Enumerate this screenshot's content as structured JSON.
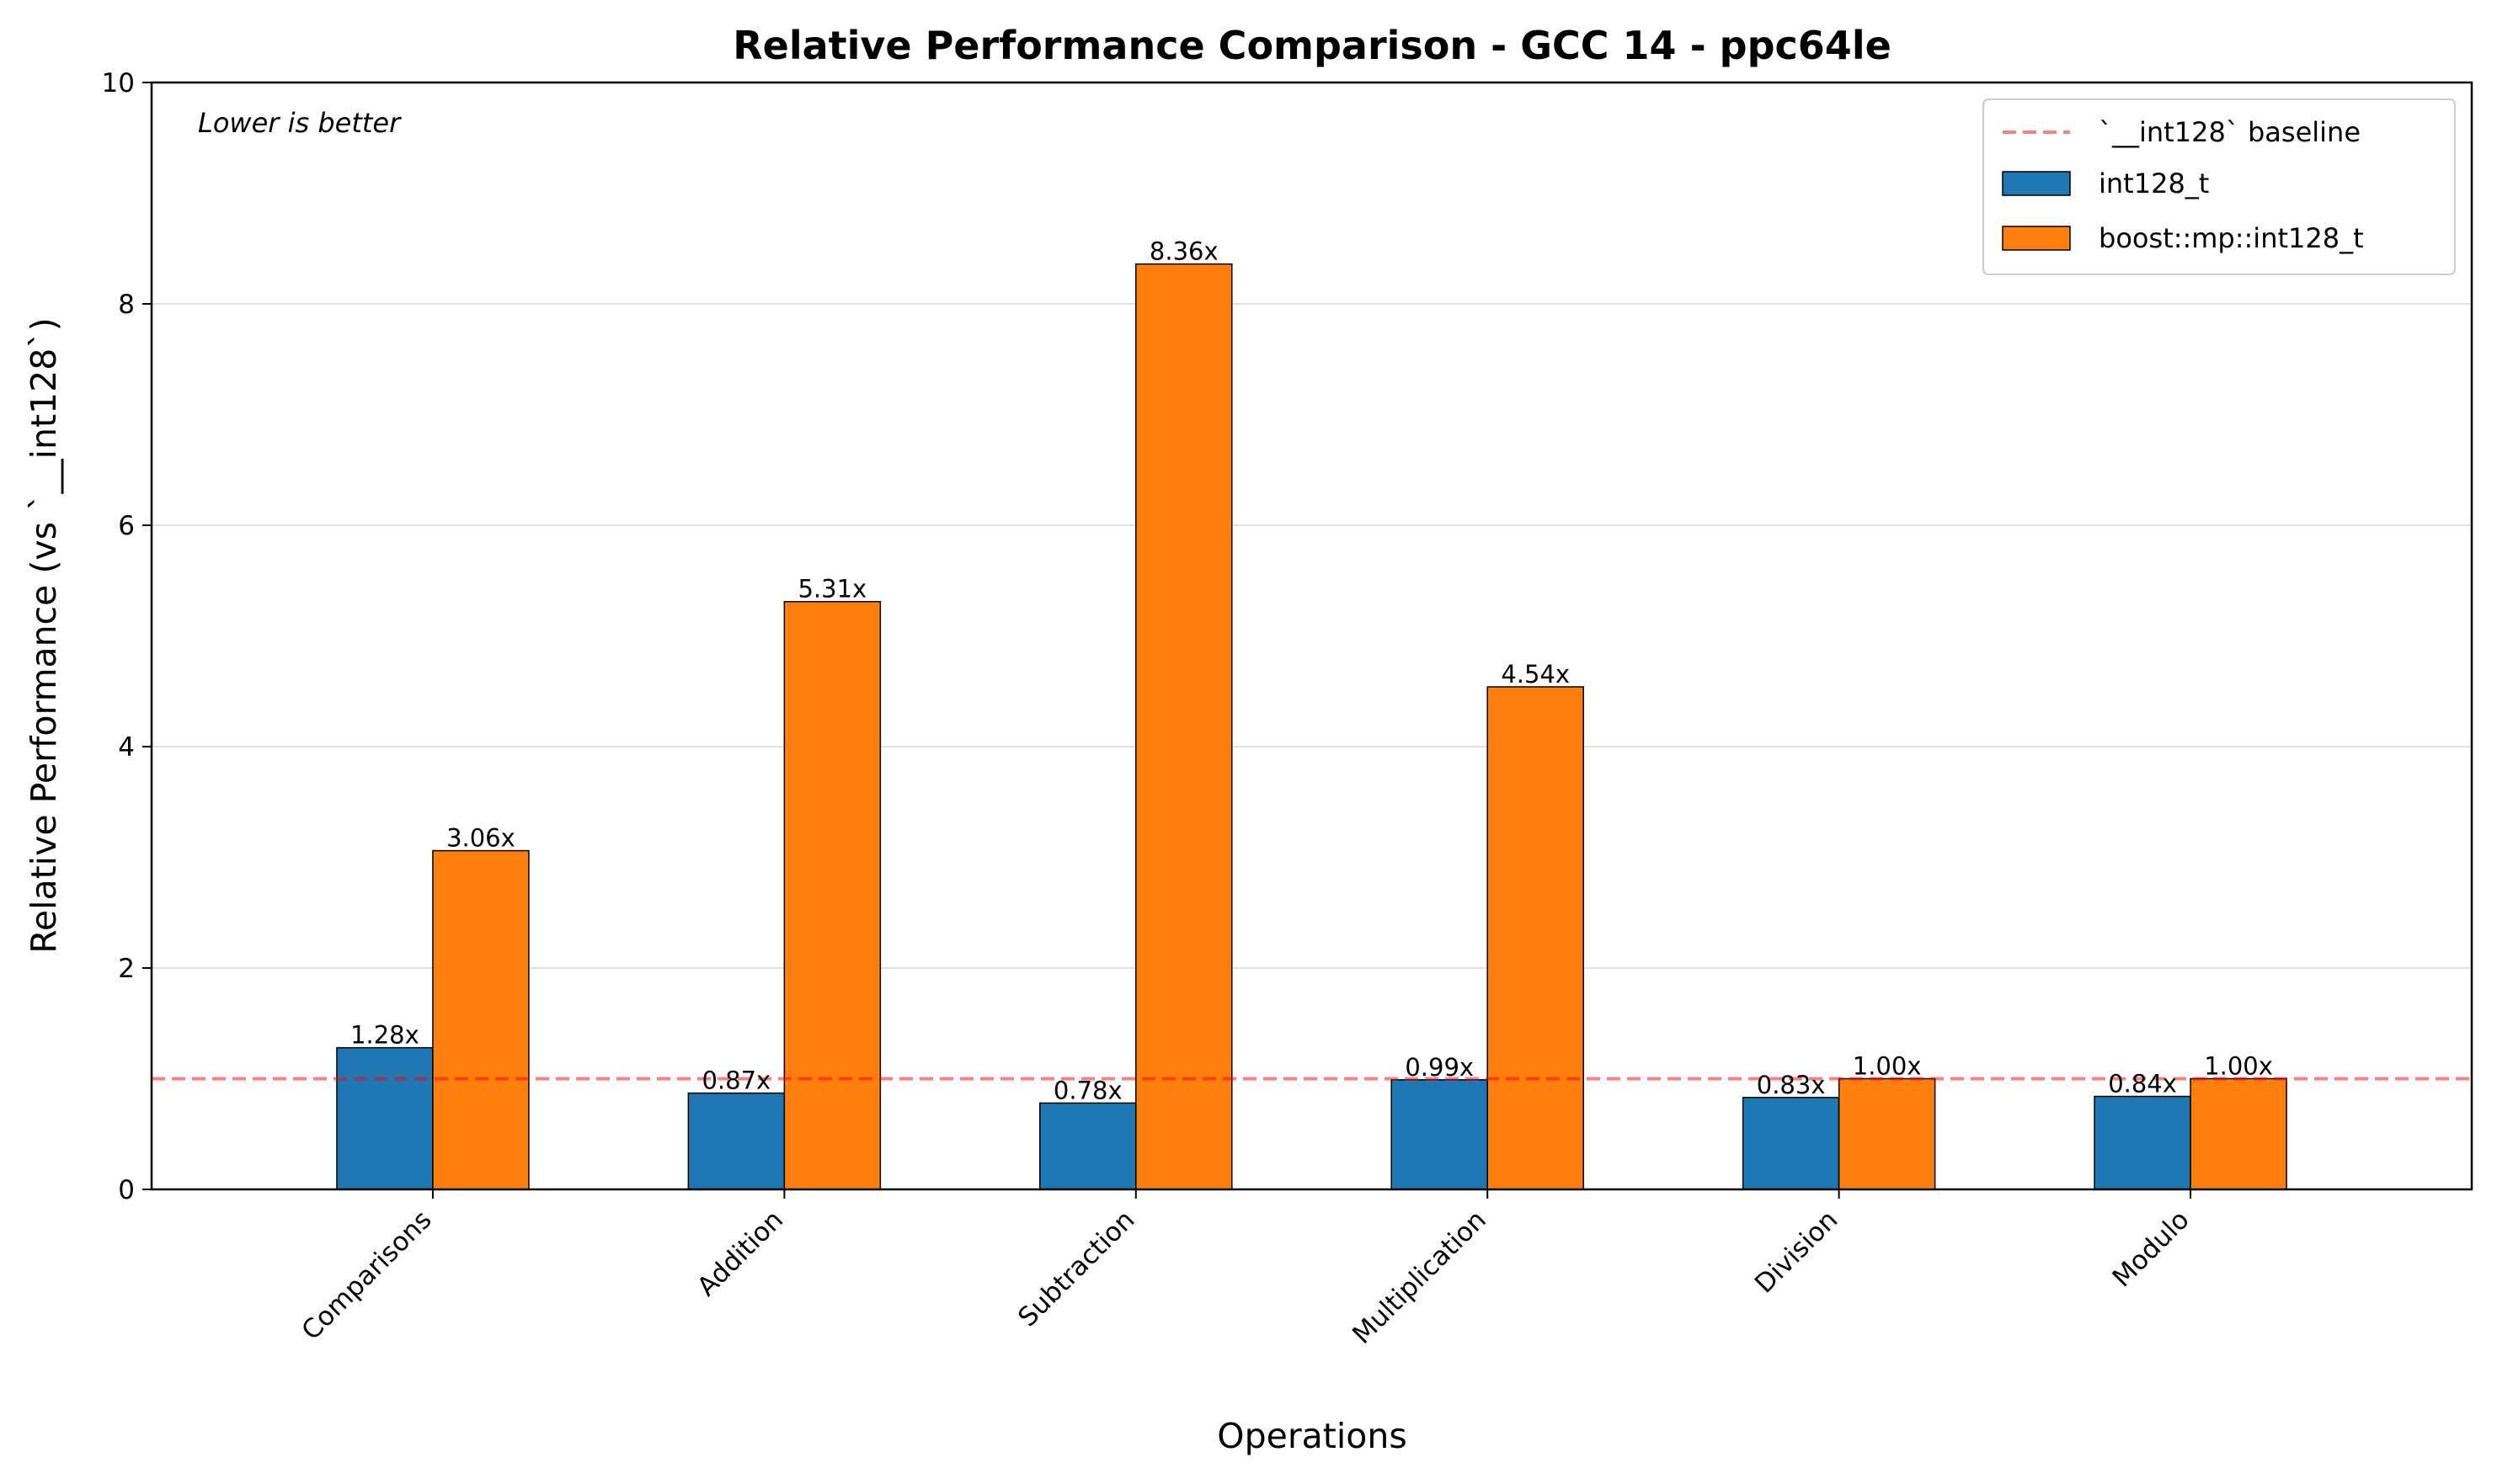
{
  "chart_data": {
    "type": "bar",
    "title": "Relative Performance Comparison - GCC 14 - ppc64le",
    "xlabel": "Operations",
    "ylabel": "Relative Performance (vs `__int128`)",
    "annotation": "Lower is better",
    "categories": [
      "Comparisons",
      "Addition",
      "Subtraction",
      "Multiplication",
      "Division",
      "Modulo"
    ],
    "series": [
      {
        "name": "int128_t",
        "color": "#1f77b4",
        "values": [
          1.28,
          0.87,
          0.78,
          0.99,
          0.83,
          0.84
        ],
        "labels": [
          "1.28x",
          "0.87x",
          "0.78x",
          "0.99x",
          "0.83x",
          "0.84x"
        ]
      },
      {
        "name": "boost::mp::int128_t",
        "color": "#ff7f0e",
        "values": [
          3.06,
          5.31,
          8.36,
          4.54,
          1.0,
          1.0
        ],
        "labels": [
          "3.06x",
          "5.31x",
          "8.36x",
          "4.54x",
          "1.00x",
          "1.00x"
        ]
      }
    ],
    "baseline": {
      "name": "`__int128` baseline",
      "value": 1.0,
      "color": "#ff0000",
      "style": "dashed"
    },
    "ylim": [
      0,
      10
    ],
    "yticks": [
      0,
      2,
      4,
      6,
      8,
      10
    ],
    "ytick_labels": [
      "0",
      "2",
      "4",
      "6",
      "8",
      "10"
    ],
    "grid": "y",
    "legend_position": "top-right"
  }
}
